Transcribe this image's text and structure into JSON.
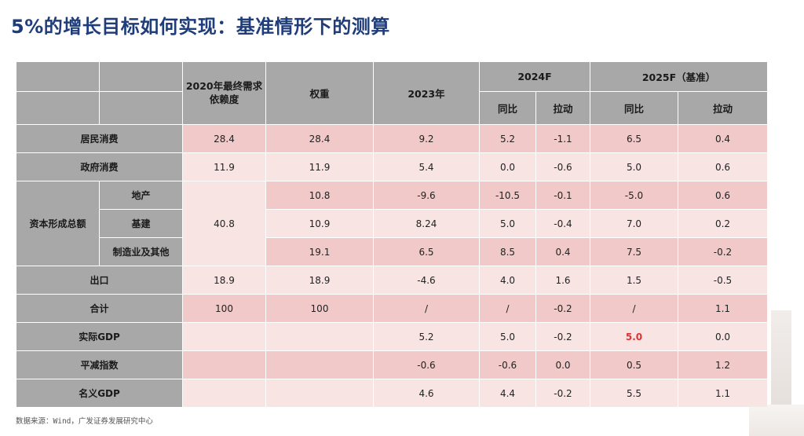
{
  "title": "5%的增长目标如何实现：基准情形下的测算",
  "header": {
    "dependency": "2020年最终需求依赖度",
    "weight": "权重",
    "y2023": "2023年",
    "y2024f": "2024F",
    "y2025f": "2025F（基准）",
    "yoy": "同比",
    "pull": "拉动"
  },
  "rows": {
    "consumption": {
      "label": "居民消费",
      "dep": "28.4",
      "w": "28.4",
      "y23": "9.2",
      "y24yoy": "5.2",
      "y24pull": "-1.1",
      "y25yoy": "6.5",
      "y25pull": "0.4"
    },
    "gov": {
      "label": "政府消费",
      "dep": "11.9",
      "w": "11.9",
      "y23": "5.4",
      "y24yoy": "0.0",
      "y24pull": "-0.6",
      "y25yoy": "5.0",
      "y25pull": "0.6"
    },
    "capital": {
      "label": "资本形成总额",
      "dep": "40.8"
    },
    "realestate": {
      "label": "地产",
      "w": "10.8",
      "y23": "-9.6",
      "y24yoy": "-10.5",
      "y24pull": "-0.1",
      "y25yoy": "-5.0",
      "y25pull": "0.6"
    },
    "infra": {
      "label": "基建",
      "w": "10.9",
      "y23": "8.24",
      "y24yoy": "5.0",
      "y24pull": "-0.4",
      "y25yoy": "7.0",
      "y25pull": "0.2"
    },
    "manuf": {
      "label": "制造业及其他",
      "w": "19.1",
      "y23": "6.5",
      "y24yoy": "8.5",
      "y24pull": "0.4",
      "y25yoy": "7.5",
      "y25pull": "-0.2"
    },
    "export": {
      "label": "出口",
      "dep": "18.9",
      "w": "18.9",
      "y23": "-4.6",
      "y24yoy": "4.0",
      "y24pull": "1.6",
      "y25yoy": "1.5",
      "y25pull": "-0.5"
    },
    "total": {
      "label": "合计",
      "dep": "100",
      "w": "100",
      "y23": "/",
      "y24yoy": "/",
      "y24pull": "-0.2",
      "y25yoy": "/",
      "y25pull": "1.1"
    },
    "realgdp": {
      "label": "实际GDP",
      "y23": "5.2",
      "y24yoy": "5.0",
      "y24pull": "-0.2",
      "y25yoy": "5.0",
      "y25pull": "0.0"
    },
    "deflator": {
      "label": "平减指数",
      "y23": "-0.6",
      "y24yoy": "-0.6",
      "y24pull": "0.0",
      "y25yoy": "0.5",
      "y25pull": "1.2"
    },
    "nominal": {
      "label": "名义GDP",
      "y23": "4.6",
      "y24yoy": "4.4",
      "y24pull": "-0.2",
      "y25yoy": "5.5",
      "y25pull": "1.1"
    }
  },
  "footer": "数据来源：Wind，广发证券发展研究中心",
  "colors": {
    "title": "#1f3d7a",
    "header": "#a8a8a8",
    "row_dark": "#f2c9c9",
    "row_light": "#f8e4e3",
    "highlight": "#e03030"
  }
}
